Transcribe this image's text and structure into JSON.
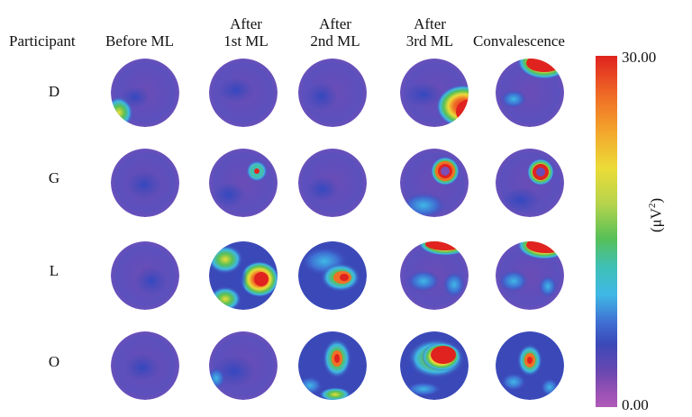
{
  "header": {
    "participant": "Participant",
    "before": "Before ML",
    "after1_a": "After",
    "after1_b": "1st ML",
    "after2_a": "After",
    "after2_b": "2nd ML",
    "after3_a": "After",
    "after3_b": "3rd ML",
    "conval": "Convalescence"
  },
  "rows": [
    "D",
    "G",
    "L",
    "O"
  ],
  "colorbar": {
    "max": "30.00",
    "min": "0.00",
    "unit_base": "(μV",
    "unit_sup": "2",
    "unit_close": ")"
  },
  "colors": {
    "background": "#ffffff",
    "base_purple": "#6c4bb5",
    "blue": "#3b49b8",
    "cyan": "#3fb8e6",
    "green": "#57c057",
    "yellow": "#ecdc38",
    "orange": "#f07026",
    "red": "#e0231f"
  }
}
